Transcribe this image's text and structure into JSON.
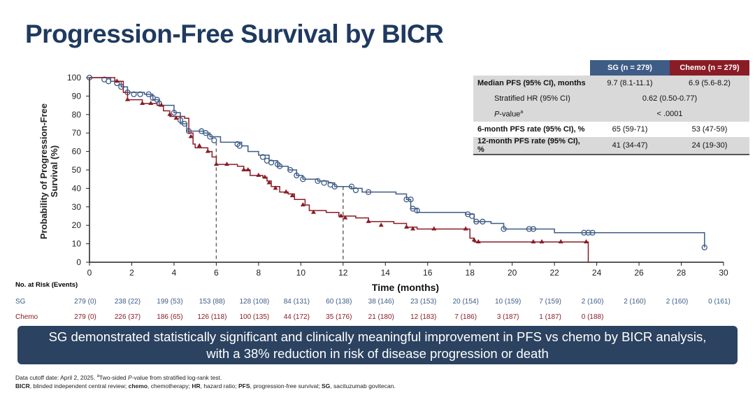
{
  "title": "Progression-Free Survival by BICR",
  "colors": {
    "sg": "#3e5c86",
    "chemo": "#8a1c26",
    "banner": "#2b4260"
  },
  "chart_data": {
    "type": "line",
    "step": true,
    "xlabel": "Time (months)",
    "ylabel": "Probability of Progression-Free Survival (%)",
    "xlim": [
      0,
      30
    ],
    "ylim": [
      0,
      100
    ],
    "xticks": [
      0,
      2,
      4,
      6,
      8,
      10,
      12,
      14,
      16,
      18,
      20,
      22,
      24,
      26,
      28,
      30
    ],
    "yticks": [
      0,
      10,
      20,
      30,
      40,
      50,
      60,
      70,
      80,
      90,
      100
    ],
    "reference_lines_x": [
      6,
      12
    ],
    "series": [
      {
        "name": "SG",
        "marker": "open-circle",
        "points": [
          [
            0,
            100
          ],
          [
            1,
            98
          ],
          [
            1.5,
            95
          ],
          [
            1.8,
            92
          ],
          [
            2.6,
            91
          ],
          [
            3,
            88
          ],
          [
            3.3,
            85
          ],
          [
            4,
            81
          ],
          [
            4.3,
            75
          ],
          [
            4.6,
            71
          ],
          [
            5.4,
            70
          ],
          [
            5.7,
            68
          ],
          [
            6.2,
            65
          ],
          [
            7.2,
            63
          ],
          [
            7.5,
            60
          ],
          [
            8,
            58
          ],
          [
            8.5,
            55
          ],
          [
            8.9,
            52
          ],
          [
            9.4,
            50
          ],
          [
            9.8,
            47
          ],
          [
            10.1,
            45
          ],
          [
            10.8,
            44
          ],
          [
            11.3,
            43
          ],
          [
            11.6,
            41
          ],
          [
            12.4,
            40
          ],
          [
            12.9,
            38
          ],
          [
            14.5,
            37
          ],
          [
            15,
            34
          ],
          [
            15.2,
            29
          ],
          [
            15.5,
            27
          ],
          [
            17.8,
            26
          ],
          [
            18.2,
            22
          ],
          [
            19.0,
            21
          ],
          [
            19.6,
            18
          ],
          [
            22,
            16
          ],
          [
            29.1,
            8
          ]
        ],
        "censored": [
          [
            0,
            100
          ],
          [
            0.7,
            99
          ],
          [
            0.9,
            98
          ],
          [
            1.3,
            97
          ],
          [
            1.5,
            95
          ],
          [
            1.8,
            92
          ],
          [
            2.1,
            91
          ],
          [
            2.4,
            91
          ],
          [
            2.8,
            91
          ],
          [
            3.0,
            89
          ],
          [
            3.2,
            88
          ],
          [
            3.3,
            86
          ],
          [
            4,
            81
          ],
          [
            4.3,
            77
          ],
          [
            4.5,
            75
          ],
          [
            4.7,
            71
          ],
          [
            5.3,
            71
          ],
          [
            5.5,
            70
          ],
          [
            5.7,
            68
          ],
          [
            5.9,
            66
          ],
          [
            7.0,
            64
          ],
          [
            7.1,
            63
          ],
          [
            8.2,
            57
          ],
          [
            8.4,
            55
          ],
          [
            8.6,
            54
          ],
          [
            8.9,
            53
          ],
          [
            9.0,
            52
          ],
          [
            9.5,
            50
          ],
          [
            9.8,
            47
          ],
          [
            10.1,
            45
          ],
          [
            10.8,
            44
          ],
          [
            11.1,
            43
          ],
          [
            11.4,
            42
          ],
          [
            11.6,
            41
          ],
          [
            12.4,
            41
          ],
          [
            12.6,
            39
          ],
          [
            13.2,
            38
          ],
          [
            15.0,
            34
          ],
          [
            15.2,
            34
          ],
          [
            15.3,
            29
          ],
          [
            15.5,
            28
          ],
          [
            17.9,
            26
          ],
          [
            18.1,
            25
          ],
          [
            18.3,
            22
          ],
          [
            18.6,
            22
          ],
          [
            19.6,
            18
          ],
          [
            20.8,
            18
          ],
          [
            21.0,
            18
          ],
          [
            23.4,
            16
          ],
          [
            23.6,
            16
          ],
          [
            23.8,
            16
          ],
          [
            29.1,
            8
          ]
        ]
      },
      {
        "name": "Chemo",
        "marker": "filled-triangle",
        "points": [
          [
            0,
            100
          ],
          [
            1.2,
            98
          ],
          [
            1.6,
            92
          ],
          [
            1.8,
            88
          ],
          [
            2.5,
            86
          ],
          [
            3.2,
            85
          ],
          [
            3.5,
            82
          ],
          [
            3.8,
            79
          ],
          [
            4.5,
            78
          ],
          [
            4.7,
            70
          ],
          [
            4.9,
            64
          ],
          [
            5.0,
            62
          ],
          [
            5.6,
            60
          ],
          [
            5.8,
            57
          ],
          [
            6.0,
            53
          ],
          [
            7.0,
            52
          ],
          [
            7.3,
            50
          ],
          [
            7.6,
            47
          ],
          [
            8.2,
            46
          ],
          [
            8.4,
            44
          ],
          [
            8.6,
            41
          ],
          [
            9.0,
            38
          ],
          [
            9.4,
            37
          ],
          [
            9.7,
            34
          ],
          [
            10.2,
            31
          ],
          [
            10.4,
            28
          ],
          [
            11.2,
            27
          ],
          [
            11.8,
            25
          ],
          [
            12.6,
            24
          ],
          [
            13.2,
            22
          ],
          [
            14.4,
            21
          ],
          [
            15.0,
            19
          ],
          [
            15.5,
            18
          ],
          [
            18.0,
            13
          ],
          [
            18.2,
            11
          ],
          [
            23.6,
            0
          ]
        ],
        "censored": [
          [
            1.3,
            98
          ],
          [
            1.8,
            88
          ],
          [
            2.5,
            86
          ],
          [
            2.9,
            86
          ],
          [
            3.4,
            85
          ],
          [
            3.8,
            80
          ],
          [
            4.1,
            78
          ],
          [
            4.8,
            68
          ],
          [
            5.2,
            63
          ],
          [
            5.6,
            60
          ],
          [
            6.0,
            53
          ],
          [
            6.5,
            53
          ],
          [
            7.3,
            50
          ],
          [
            7.5,
            50
          ],
          [
            8.0,
            47
          ],
          [
            8.3,
            46
          ],
          [
            8.5,
            43
          ],
          [
            8.8,
            40
          ],
          [
            9.3,
            38
          ],
          [
            9.6,
            36
          ],
          [
            10.1,
            31
          ],
          [
            10.6,
            27
          ],
          [
            11.9,
            25
          ],
          [
            12.1,
            24
          ],
          [
            13.2,
            22
          ],
          [
            13.8,
            20
          ],
          [
            15.0,
            19
          ],
          [
            15.3,
            18
          ],
          [
            16.3,
            18
          ],
          [
            17.8,
            18
          ],
          [
            18.2,
            12
          ],
          [
            18.4,
            11
          ],
          [
            21.0,
            11
          ],
          [
            21.4,
            11
          ],
          [
            22.3,
            11
          ],
          [
            23.5,
            11
          ]
        ]
      }
    ]
  },
  "table": {
    "headers": [
      "SG (n = 279)",
      "Chemo (n = 279)"
    ],
    "rows": [
      {
        "label": "Median PFS (95% CI), months",
        "sg": "9.7 (8.1-11.1)",
        "chemo": "6.9 (5.6-8.2)"
      },
      {
        "label": "Stratified HR (95% CI)",
        "both": "0.62 (0.50-0.77)"
      },
      {
        "label_italic": "P",
        "label_rest": "-value",
        "label_sup": "a",
        "both": "< .0001"
      },
      {
        "label": "6-month PFS rate (95% CI), %",
        "sg": "65 (59-71)",
        "chemo": "53 (47-59)"
      },
      {
        "label": "12-month PFS rate (95% CI), %",
        "sg": "41 (34-47)",
        "chemo": "24 (19-30)"
      }
    ]
  },
  "risk": {
    "label": "No. at Risk (Events)",
    "sg_label": "SG",
    "chemo_label": "Chemo",
    "sg": [
      "279 (0)",
      "238 (22)",
      "199 (53)",
      "153 (88)",
      "128 (108)",
      "84 (131)",
      "60 (138)",
      "38 (146)",
      "23 (153)",
      "20 (154)",
      "10 (159)",
      "7 (159)",
      "2 (160)",
      "2 (160)",
      "2 (160)",
      "0 (161)"
    ],
    "chemo": [
      "279 (0)",
      "226 (37)",
      "186 (65)",
      "126 (118)",
      "100 (135)",
      "44 (172)",
      "35 (176)",
      "21 (180)",
      "12 (183)",
      "7 (186)",
      "3 (187)",
      "1 (187)",
      "0 (188)"
    ]
  },
  "banner": {
    "line1": "SG demonstrated statistically significant and clinically meaningful improvement in PFS vs chemo by BICR analysis,",
    "line2": "with a 38% reduction in risk of disease progression or death"
  },
  "footnotes": {
    "line1_a": "Data cutoff date: April 2, 2025. ",
    "line1_sup": "a",
    "line1_b": "Two-sided ",
    "line1_i": "P",
    "line1_c": "-value from stratified log-rank test.",
    "line2": [
      [
        "BICR",
        ", blinded independent central review; "
      ],
      [
        "chemo",
        ", chemotherapy; "
      ],
      [
        "HR",
        ", hazard ratio; "
      ],
      [
        "PFS",
        ", progression-free survival; "
      ],
      [
        "SG",
        ", sacituzumab govitecan."
      ]
    ]
  }
}
